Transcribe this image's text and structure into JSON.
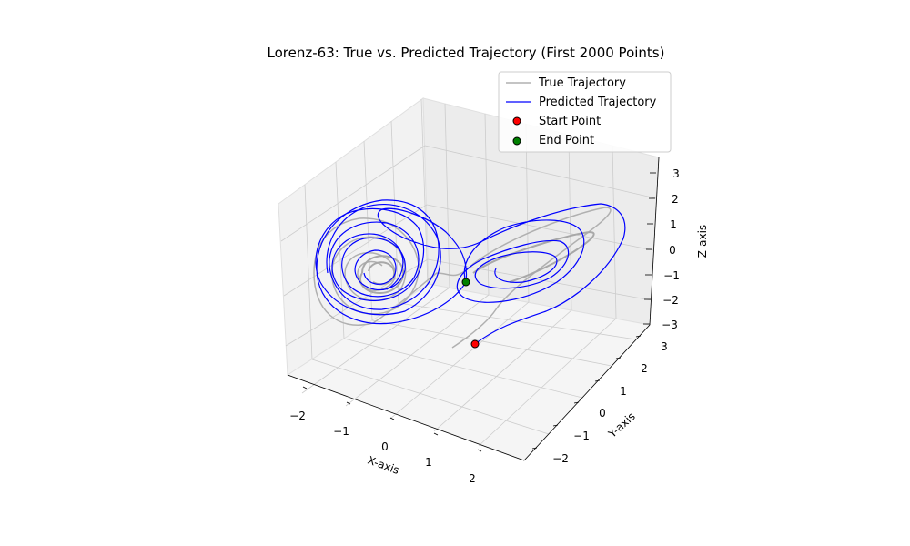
{
  "chart_data": {
    "type": "line3d",
    "title": "Lorenz-63: True vs. Predicted Trajectory (First 2000 Points)",
    "xlabel": "X-axis",
    "ylabel": "Y-axis",
    "zlabel": "Z-axis",
    "xlim": [
      -2.4,
      2.7
    ],
    "ylim": [
      -2.4,
      3.6
    ],
    "zlim": [
      -3.2,
      3.6
    ],
    "x_ticks": [
      "−2",
      "−1",
      "0",
      "1",
      "2"
    ],
    "y_ticks": [
      "−2",
      "−1",
      "0",
      "1",
      "2",
      "3"
    ],
    "z_ticks": [
      "−3",
      "−2",
      "−1",
      "0",
      "1",
      "2",
      "3"
    ],
    "grid": true,
    "legend_position": "upper right",
    "series": [
      {
        "name": "True Trajectory",
        "kind": "line",
        "color": "#b0b0b0"
      },
      {
        "name": "Predicted Trajectory",
        "kind": "line",
        "color": "#0000ff"
      },
      {
        "name": "Start Point",
        "kind": "point",
        "color": "#ff0000",
        "x": 1.0,
        "y": 0.0,
        "z": -2.5
      },
      {
        "name": "End Point",
        "kind": "point",
        "color": "#008000",
        "x": 0.5,
        "y": 0.3,
        "z": -0.6
      }
    ]
  }
}
